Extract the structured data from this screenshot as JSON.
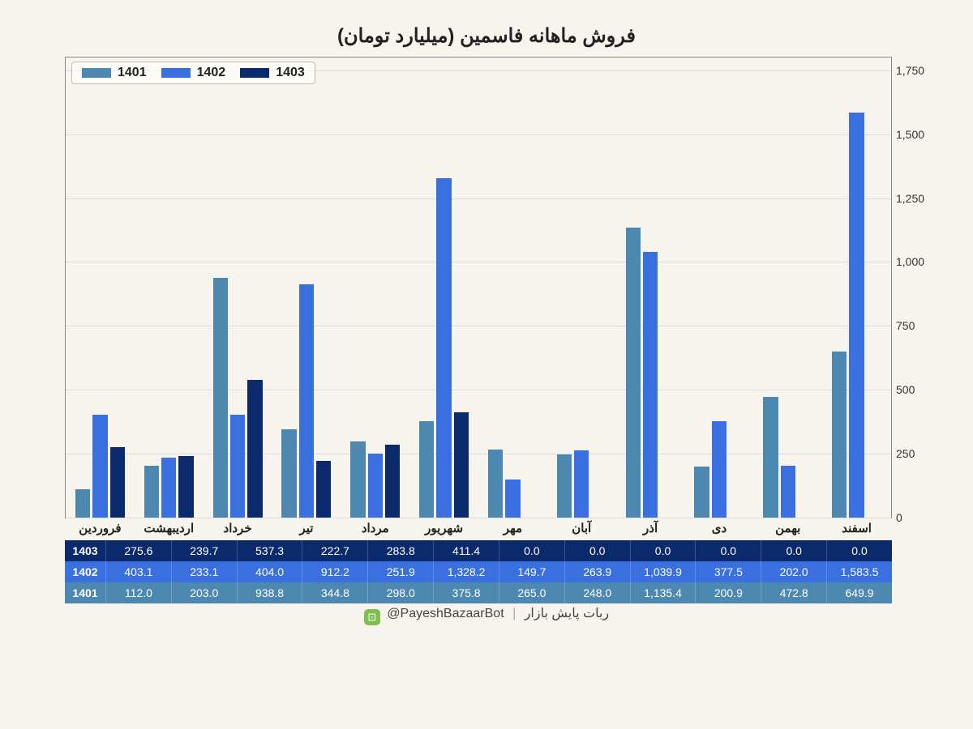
{
  "chart": {
    "type": "grouped-bar",
    "title": "فروش ماهانه فاسمین (میلیارد تومان)",
    "background_color": "#f7f4ed",
    "plot_border_color": "#888888",
    "grid_color": "#dddddd",
    "ylim": [
      0,
      1800
    ],
    "yticks": [
      0,
      250,
      500,
      750,
      1000,
      1250,
      1500,
      1750
    ],
    "ytick_labels": [
      "0",
      "250",
      "500",
      "750",
      "1,000",
      "1,250",
      "1,500",
      "1,750"
    ],
    "categories": [
      "فروردین",
      "اردیبهشت",
      "خرداد",
      "تیر",
      "مرداد",
      "شهریور",
      "مهر",
      "آبان",
      "آذر",
      "دی",
      "بهمن",
      "اسفند"
    ],
    "series": [
      {
        "name": "1401",
        "color": "#4d88b0",
        "values": [
          112.0,
          203.0,
          938.8,
          344.8,
          298.0,
          375.8,
          265.0,
          248.0,
          1135.4,
          200.9,
          472.8,
          649.9
        ],
        "labels": [
          "112.0",
          "203.0",
          "938.8",
          "344.8",
          "298.0",
          "375.8",
          "265.0",
          "248.0",
          "1,135.4",
          "200.9",
          "472.8",
          "649.9"
        ]
      },
      {
        "name": "1402",
        "color": "#3a6fe0",
        "values": [
          403.1,
          233.1,
          404.0,
          912.2,
          251.9,
          1328.2,
          149.7,
          263.9,
          1039.9,
          377.5,
          202.0,
          1583.5
        ],
        "labels": [
          "403.1",
          "233.1",
          "404.0",
          "912.2",
          "251.9",
          "1,328.2",
          "149.7",
          "263.9",
          "1,039.9",
          "377.5",
          "202.0",
          "1,583.5"
        ]
      },
      {
        "name": "1403",
        "color": "#0b2a6b",
        "values": [
          275.6,
          239.7,
          537.3,
          222.7,
          283.8,
          411.4,
          0.0,
          0.0,
          0.0,
          0.0,
          0.0,
          0.0
        ],
        "labels": [
          "275.6",
          "239.7",
          "537.3",
          "222.7",
          "283.8",
          "411.4",
          "0.0",
          "0.0",
          "0.0",
          "0.0",
          "0.0",
          "0.0"
        ]
      }
    ],
    "table_row_order": [
      "1403",
      "1402",
      "1401"
    ],
    "bar_width_pct": 1.8,
    "group_width_pct": 8.333,
    "title_fontsize": 24
  },
  "footer": {
    "brand": "ربات پایش بازار",
    "handle": "@PayeshBazaarBot",
    "icon_name": "robot-icon"
  }
}
